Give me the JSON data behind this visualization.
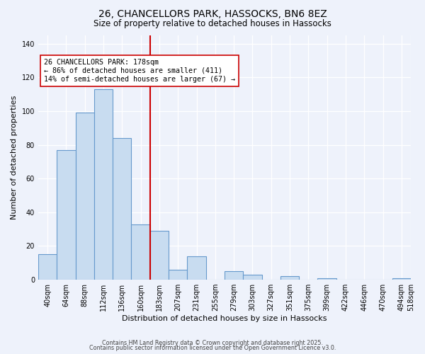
{
  "title": "26, CHANCELLORS PARK, HASSOCKS, BN6 8EZ",
  "subtitle": "Size of property relative to detached houses in Hassocks",
  "xlabel": "Distribution of detached houses by size in Hassocks",
  "ylabel": "Number of detached properties",
  "bar_color": "#c8dcf0",
  "bar_edge_color": "#6699cc",
  "background_color": "#eef2fb",
  "bin_labels": [
    "40sqm",
    "64sqm",
    "88sqm",
    "112sqm",
    "136sqm",
    "160sqm",
    "183sqm",
    "207sqm",
    "231sqm",
    "255sqm",
    "279sqm",
    "303sqm",
    "327sqm",
    "351sqm",
    "375sqm",
    "399sqm",
    "422sqm",
    "446sqm",
    "470sqm",
    "494sqm",
    "518sqm"
  ],
  "values": [
    15,
    77,
    99,
    113,
    84,
    33,
    29,
    6,
    14,
    0,
    5,
    3,
    0,
    2,
    0,
    1,
    0,
    0,
    0,
    1
  ],
  "vline_pos": 6,
  "vline_color": "#cc0000",
  "annotation_title": "26 CHANCELLORS PARK: 178sqm",
  "annotation_line1": "← 86% of detached houses are smaller (411)",
  "annotation_line2": "14% of semi-detached houses are larger (67) →",
  "annotation_box_facecolor": "#ffffff",
  "annotation_box_edgecolor": "#cc0000",
  "ylim": [
    0,
    145
  ],
  "yticks": [
    0,
    20,
    40,
    60,
    80,
    100,
    120,
    140
  ],
  "footnote1": "Contains HM Land Registry data © Crown copyright and database right 2025.",
  "footnote2": "Contains public sector information licensed under the Open Government Licence v3.0."
}
